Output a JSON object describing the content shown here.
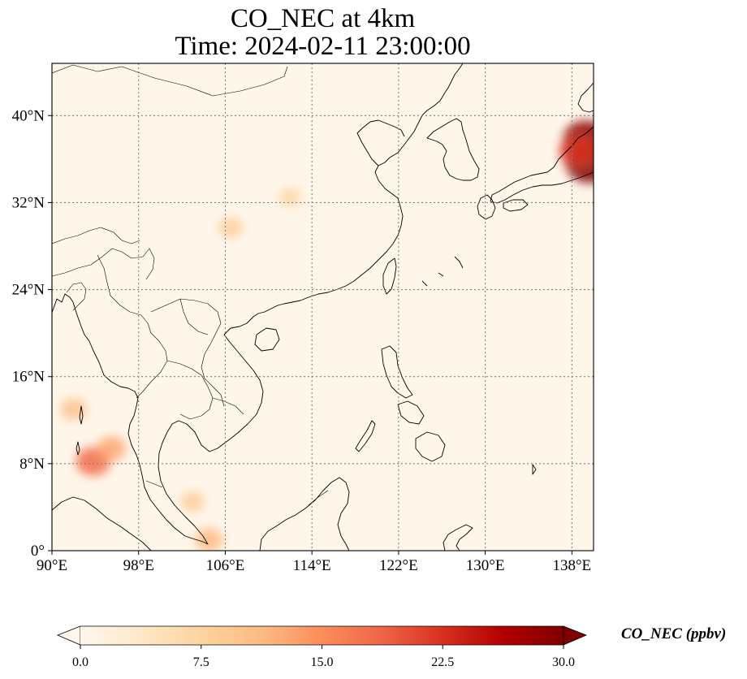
{
  "title": {
    "line1": "CO_NEC at 4km",
    "line2": "Time: 2024-02-11 23:00:00"
  },
  "map": {
    "lon_range": [
      90,
      140
    ],
    "lat_range": [
      0,
      44.8
    ],
    "lon_ticks": [
      "90°E",
      "98°E",
      "106°E",
      "114°E",
      "122°E",
      "130°E",
      "138°E"
    ],
    "lon_tick_values": [
      90,
      98,
      106,
      114,
      122,
      130,
      138
    ],
    "lat_ticks": [
      "0°",
      "8°N",
      "16°N",
      "24°N",
      "32°N",
      "40°N"
    ],
    "lat_tick_values": [
      0,
      8,
      16,
      24,
      32,
      40
    ],
    "gridlines": true,
    "background_color": "#fff6ea",
    "plumes": [
      {
        "lon": 93.8,
        "lat": 8.2,
        "intensity": 0.55
      },
      {
        "lon": 95.5,
        "lat": 9.4,
        "intensity": 0.35
      },
      {
        "lon": 92.0,
        "lat": 13.0,
        "intensity": 0.25
      },
      {
        "lon": 104.5,
        "lat": 1.0,
        "intensity": 0.3
      },
      {
        "lon": 103.0,
        "lat": 4.5,
        "intensity": 0.18
      },
      {
        "lon": 106.5,
        "lat": 29.7,
        "intensity": 0.18
      },
      {
        "lon": 112.0,
        "lat": 32.5,
        "intensity": 0.12
      },
      {
        "lon": 139.3,
        "lat": 37.8,
        "intensity": 0.95
      },
      {
        "lon": 139.6,
        "lat": 35.6,
        "intensity": 1.0
      },
      {
        "lon": 138.6,
        "lat": 36.7,
        "intensity": 0.7
      }
    ]
  },
  "colorbar": {
    "label": "CO_NEC (ppbv)",
    "ticks": [
      "0.0",
      "7.5",
      "15.0",
      "22.5",
      "30.0"
    ],
    "min": 0,
    "max": 30,
    "extend": "both",
    "colormap": "OrRd",
    "colors": [
      "#fff7ec",
      "#fee8c8",
      "#fdd49e",
      "#fdbb84",
      "#fc8d59",
      "#ef6548",
      "#d7301f",
      "#b30000",
      "#7f0000"
    ]
  }
}
